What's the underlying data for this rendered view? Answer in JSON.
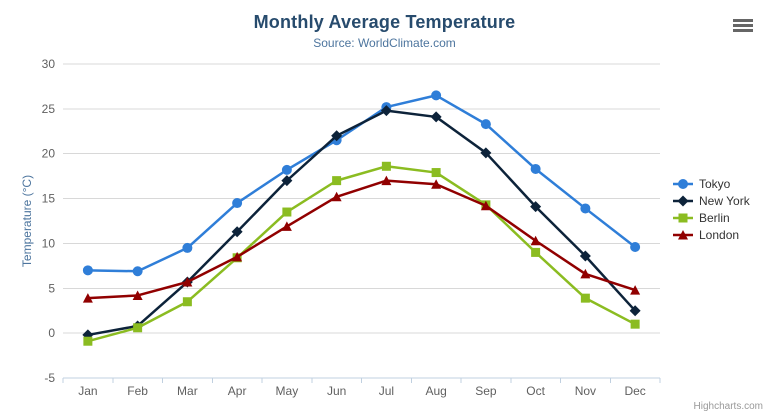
{
  "chart": {
    "title": "Monthly Average Temperature",
    "subtitle": "Source: WorldClimate.com",
    "y_axis_title": "Temperature (°C)",
    "credits": "Highcharts.com"
  },
  "icons": {
    "export_menu": "hamburger-menu-icon"
  },
  "colors": {
    "title": "#274b6d",
    "subtitle": "#4d759e",
    "axis_label": "#606060",
    "axis_line": "#c0d0e0",
    "gridline": "#d8d8d8",
    "legend_text": "#333333",
    "credits_text": "#999999"
  },
  "chart_data": {
    "type": "line",
    "title": "Monthly Average Temperature",
    "subtitle": "Source: WorldClimate.com",
    "xlabel": "",
    "ylabel": "Temperature (°C)",
    "categories": [
      "Jan",
      "Feb",
      "Mar",
      "Apr",
      "May",
      "Jun",
      "Jul",
      "Aug",
      "Sep",
      "Oct",
      "Nov",
      "Dec"
    ],
    "ylim": [
      -5,
      30
    ],
    "yticks": [
      -5,
      0,
      5,
      10,
      15,
      20,
      25,
      30
    ],
    "grid": true,
    "legend_position": "right",
    "series": [
      {
        "name": "Tokyo",
        "color": "#2f7ed8",
        "marker": "circle",
        "values": [
          7.0,
          6.9,
          9.5,
          14.5,
          18.2,
          21.5,
          25.2,
          26.5,
          23.3,
          18.3,
          13.9,
          9.6
        ]
      },
      {
        "name": "New York",
        "color": "#0d233a",
        "marker": "diamond",
        "values": [
          -0.2,
          0.8,
          5.7,
          11.3,
          17.0,
          22.0,
          24.8,
          24.1,
          20.1,
          14.1,
          8.6,
          2.5
        ]
      },
      {
        "name": "Berlin",
        "color": "#8bbc21",
        "marker": "square",
        "values": [
          -0.9,
          0.6,
          3.5,
          8.4,
          13.5,
          17.0,
          18.6,
          17.9,
          14.3,
          9.0,
          3.9,
          1.0
        ]
      },
      {
        "name": "London",
        "color": "#910000",
        "marker": "triangle",
        "values": [
          3.9,
          4.2,
          5.7,
          8.5,
          11.9,
          15.2,
          17.0,
          16.6,
          14.2,
          10.3,
          6.6,
          4.8
        ]
      }
    ]
  }
}
